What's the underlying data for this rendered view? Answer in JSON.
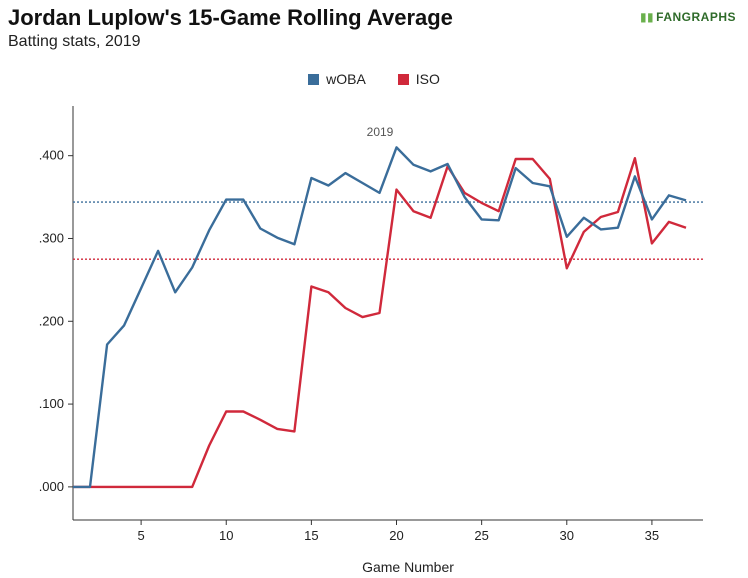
{
  "header": {
    "title": "Jordan Luplow's 15-Game Rolling Average",
    "subtitle": "Batting stats, 2019",
    "logo_text": "FANGRAPHS"
  },
  "chart_data": {
    "type": "line",
    "xlabel": "Game Number",
    "ylabel": "",
    "xlim": [
      1,
      38
    ],
    "ylim": [
      -0.04,
      0.46
    ],
    "x_ticks": [
      5,
      10,
      15,
      20,
      25,
      30,
      35
    ],
    "x_tick_labels": [
      "5",
      "10",
      "15",
      "20",
      "25",
      "30",
      "35"
    ],
    "y_ticks": [
      0,
      0.1,
      0.2,
      0.3,
      0.4
    ],
    "y_tick_labels": [
      ".000",
      ".100",
      ".200",
      ".300",
      ".400"
    ],
    "annotation": "2019",
    "legend_position": "top-center",
    "grid": false,
    "x": [
      1,
      2,
      3,
      4,
      5,
      6,
      7,
      8,
      9,
      10,
      11,
      12,
      13,
      14,
      15,
      16,
      17,
      18,
      19,
      20,
      21,
      22,
      23,
      24,
      25,
      26,
      27,
      28,
      29,
      30,
      31,
      32,
      33,
      34,
      35,
      36,
      37
    ],
    "series": [
      {
        "name": "wOBA",
        "color": "#3a6d9a",
        "average": 0.344,
        "values": [
          0.0,
          0.0,
          0.172,
          0.195,
          0.24,
          0.285,
          0.235,
          0.265,
          0.31,
          0.347,
          0.347,
          0.312,
          0.301,
          0.293,
          0.373,
          0.364,
          0.379,
          0.367,
          0.355,
          0.41,
          0.389,
          0.381,
          0.39,
          0.35,
          0.323,
          0.322,
          0.385,
          0.367,
          0.363,
          0.302,
          0.325,
          0.311,
          0.313,
          0.375,
          0.323,
          0.352,
          0.346
        ]
      },
      {
        "name": "ISO",
        "color": "#d0293b",
        "average": 0.275,
        "values": [
          0.0,
          0.0,
          0.0,
          0.0,
          0.0,
          0.0,
          0.0,
          0.0,
          0.05,
          0.091,
          0.091,
          0.081,
          0.07,
          0.067,
          0.242,
          0.235,
          0.216,
          0.205,
          0.21,
          0.359,
          0.333,
          0.325,
          0.387,
          0.355,
          0.343,
          0.333,
          0.396,
          0.396,
          0.372,
          0.264,
          0.308,
          0.326,
          0.332,
          0.397,
          0.294,
          0.32,
          0.313
        ]
      }
    ]
  }
}
